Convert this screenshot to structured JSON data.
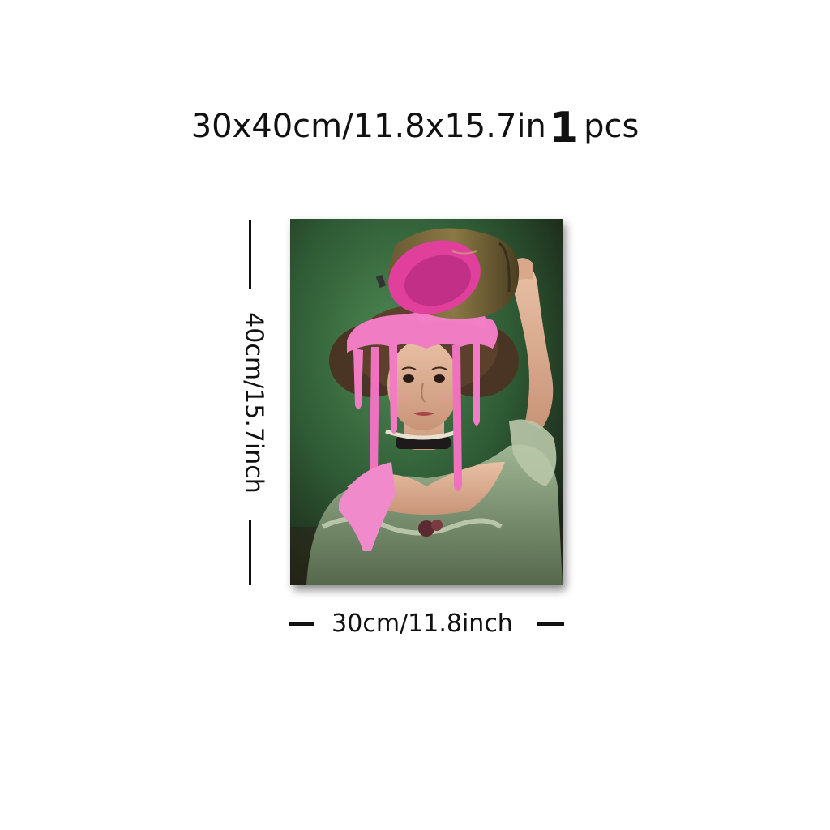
{
  "title": {
    "size": "30x40cm/11.8x15.7in",
    "quantity": "1",
    "unit": "pcs"
  },
  "dimensions": {
    "height_label": "40cm/15.7inch",
    "width_label": "30cm/11.8inch"
  },
  "artwork": {
    "subject": "woman-with-pink-paint-bucket-portrait"
  }
}
